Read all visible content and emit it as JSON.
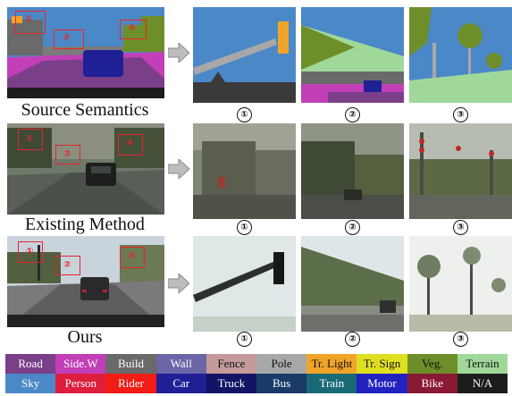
{
  "rows": [
    {
      "label": "Source Semantics",
      "nums": [
        "①",
        "②",
        "③"
      ]
    },
    {
      "label": "Existing Method",
      "nums": [
        "①",
        "②",
        "③"
      ]
    },
    {
      "label": "Ours",
      "nums": [
        "①",
        "②",
        "③"
      ]
    }
  ],
  "box_labels": [
    "①",
    "②",
    "③"
  ],
  "legend": {
    "row1": [
      {
        "label": "Road",
        "color": "#7b3f8a"
      },
      {
        "label": "Side.W",
        "color": "#c23fb7"
      },
      {
        "label": "Build",
        "color": "#6a6a6a"
      },
      {
        "label": "Wall",
        "color": "#6a66a8"
      },
      {
        "label": "Fence",
        "color": "#c49a9a"
      },
      {
        "label": "Pole",
        "color": "#a8a8a8"
      },
      {
        "label": "Tr. Light",
        "color": "#f0a428"
      },
      {
        "label": "Tr. Sign",
        "color": "#dfdf22"
      },
      {
        "label": "Veg.",
        "color": "#6e8e2a"
      },
      {
        "label": "Terrain",
        "color": "#a0d89a"
      }
    ],
    "row2": [
      {
        "label": "Sky",
        "color": "#4b88c8"
      },
      {
        "label": "Person",
        "color": "#dc1f3c"
      },
      {
        "label": "Rider",
        "color": "#f01c16"
      },
      {
        "label": "Car",
        "color": "#1f1f96"
      },
      {
        "label": "Truck",
        "color": "#141466"
      },
      {
        "label": "Bus",
        "color": "#1a3a68"
      },
      {
        "label": "Train",
        "color": "#1a6a76"
      },
      {
        "label": "Motor",
        "color": "#2222c0"
      },
      {
        "label": "Bike",
        "color": "#8a1a34"
      },
      {
        "label": "N/A",
        "color": "#1c1c1c"
      }
    ]
  }
}
